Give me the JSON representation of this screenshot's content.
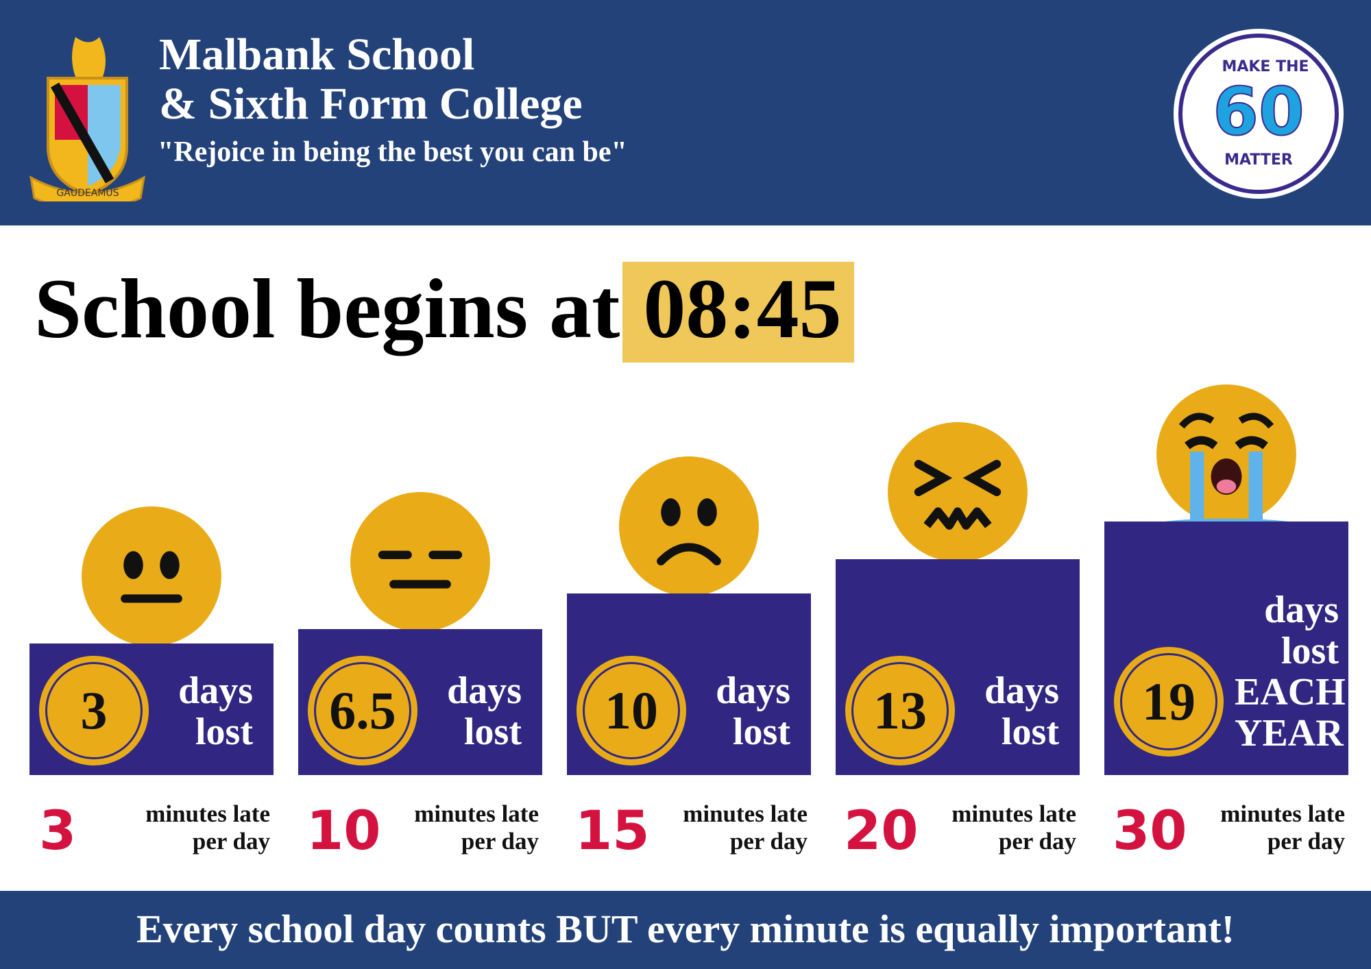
{
  "header": {
    "title_lines": [
      "Malbank School",
      "& Sixth Form College"
    ],
    "motto": "\"Rejoice in being the best you can be\"",
    "crest_text": "GAUDEAMUS",
    "badge": {
      "top": "MAKE THE",
      "number": "60",
      "bottom": "MATTER"
    }
  },
  "headline": {
    "text": "School begins at",
    "time": "08:45"
  },
  "items": [
    {
      "days": "3",
      "days_text": [
        "days",
        "lost"
      ],
      "minutes": "3",
      "minutes_text": [
        "minutes late",
        "per day"
      ]
    },
    {
      "days": "6.5",
      "days_text": [
        "days",
        "lost"
      ],
      "minutes": "10",
      "minutes_text": [
        "minutes late",
        "per day"
      ]
    },
    {
      "days": "10",
      "days_text": [
        "days",
        "lost"
      ],
      "minutes": "15",
      "minutes_text": [
        "minutes late",
        "per day"
      ]
    },
    {
      "days": "13",
      "days_text": [
        "days",
        "lost"
      ],
      "minutes": "20",
      "minutes_text": [
        "minutes late",
        "per day"
      ]
    },
    {
      "days": "19",
      "days_text": [
        "days",
        "lost",
        "EACH",
        "YEAR"
      ],
      "minutes": "30",
      "minutes_text": [
        "minutes late",
        "per day"
      ]
    }
  ],
  "footer": "Every school day counts BUT every minute is equally important!"
}
